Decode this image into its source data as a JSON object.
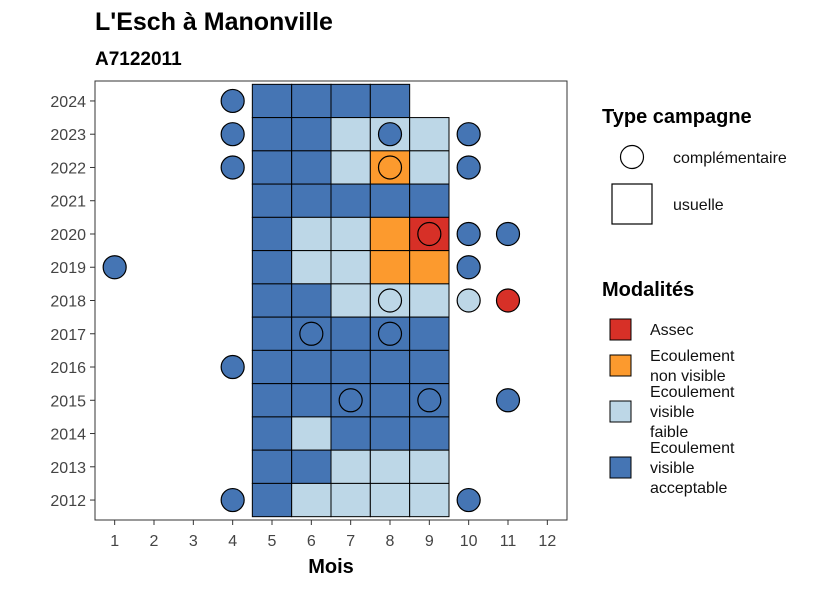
{
  "chart_data": {
    "type": "heatmap",
    "title": "L'Esch à Manonville",
    "subtitle": "A7122011",
    "xlabel": "Mois",
    "ylabel": "",
    "x_ticks": [
      1,
      2,
      3,
      4,
      5,
      6,
      7,
      8,
      9,
      10,
      11,
      12
    ],
    "y_ticks": [
      2012,
      2013,
      2014,
      2015,
      2016,
      2017,
      2018,
      2019,
      2020,
      2021,
      2022,
      2023,
      2024
    ],
    "xlim": [
      0.5,
      12.5
    ],
    "ylim": [
      2011.4,
      2024.6
    ],
    "grid": false,
    "legend_position": "right",
    "modalites": [
      {
        "key": "assec",
        "lines": [
          "Assec"
        ],
        "color": "#D73027"
      },
      {
        "key": "ecoulement_non_visible",
        "lines": [
          "Ecoulement",
          "non visible"
        ],
        "color": "#FC9A2E"
      },
      {
        "key": "ecoulement_visible_faible",
        "lines": [
          "Ecoulement",
          "visible",
          "faible"
        ],
        "color": "#BDD7E7"
      },
      {
        "key": "ecoulement_visible_acceptable",
        "lines": [
          "Ecoulement",
          "visible",
          "acceptable"
        ],
        "color": "#4575B4"
      }
    ],
    "type_campagne_title": "Type campagne",
    "type_campagne": [
      {
        "key": "complementaire",
        "label": "complémentaire",
        "shape": "circle"
      },
      {
        "key": "usuelle",
        "label": "usuelle",
        "shape": "square"
      }
    ],
    "usuelle": [
      {
        "year": 2024,
        "month": 5,
        "modalite": "ecoulement_visible_acceptable"
      },
      {
        "year": 2024,
        "month": 6,
        "modalite": "ecoulement_visible_acceptable"
      },
      {
        "year": 2024,
        "month": 7,
        "modalite": "ecoulement_visible_acceptable"
      },
      {
        "year": 2024,
        "month": 8,
        "modalite": "ecoulement_visible_acceptable"
      },
      {
        "year": 2023,
        "month": 5,
        "modalite": "ecoulement_visible_acceptable"
      },
      {
        "year": 2023,
        "month": 6,
        "modalite": "ecoulement_visible_acceptable"
      },
      {
        "year": 2023,
        "month": 7,
        "modalite": "ecoulement_visible_faible"
      },
      {
        "year": 2023,
        "month": 8,
        "modalite": "ecoulement_visible_faible"
      },
      {
        "year": 2023,
        "month": 9,
        "modalite": "ecoulement_visible_faible"
      },
      {
        "year": 2022,
        "month": 5,
        "modalite": "ecoulement_visible_acceptable"
      },
      {
        "year": 2022,
        "month": 6,
        "modalite": "ecoulement_visible_acceptable"
      },
      {
        "year": 2022,
        "month": 7,
        "modalite": "ecoulement_visible_faible"
      },
      {
        "year": 2022,
        "month": 8,
        "modalite": "ecoulement_non_visible"
      },
      {
        "year": 2022,
        "month": 9,
        "modalite": "ecoulement_visible_faible"
      },
      {
        "year": 2021,
        "month": 5,
        "modalite": "ecoulement_visible_acceptable"
      },
      {
        "year": 2021,
        "month": 6,
        "modalite": "ecoulement_visible_acceptable"
      },
      {
        "year": 2021,
        "month": 7,
        "modalite": "ecoulement_visible_acceptable"
      },
      {
        "year": 2021,
        "month": 8,
        "modalite": "ecoulement_visible_acceptable"
      },
      {
        "year": 2021,
        "month": 9,
        "modalite": "ecoulement_visible_acceptable"
      },
      {
        "year": 2020,
        "month": 5,
        "modalite": "ecoulement_visible_acceptable"
      },
      {
        "year": 2020,
        "month": 6,
        "modalite": "ecoulement_visible_faible"
      },
      {
        "year": 2020,
        "month": 7,
        "modalite": "ecoulement_visible_faible"
      },
      {
        "year": 2020,
        "month": 8,
        "modalite": "ecoulement_non_visible"
      },
      {
        "year": 2020,
        "month": 9,
        "modalite": "assec"
      },
      {
        "year": 2019,
        "month": 5,
        "modalite": "ecoulement_visible_acceptable"
      },
      {
        "year": 2019,
        "month": 6,
        "modalite": "ecoulement_visible_faible"
      },
      {
        "year": 2019,
        "month": 7,
        "modalite": "ecoulement_visible_faible"
      },
      {
        "year": 2019,
        "month": 8,
        "modalite": "ecoulement_non_visible"
      },
      {
        "year": 2019,
        "month": 9,
        "modalite": "ecoulement_non_visible"
      },
      {
        "year": 2018,
        "month": 5,
        "modalite": "ecoulement_visible_acceptable"
      },
      {
        "year": 2018,
        "month": 6,
        "modalite": "ecoulement_visible_acceptable"
      },
      {
        "year": 2018,
        "month": 7,
        "modalite": "ecoulement_visible_faible"
      },
      {
        "year": 2018,
        "month": 8,
        "modalite": "ecoulement_visible_faible"
      },
      {
        "year": 2018,
        "month": 9,
        "modalite": "ecoulement_visible_faible"
      },
      {
        "year": 2017,
        "month": 5,
        "modalite": "ecoulement_visible_acceptable"
      },
      {
        "year": 2017,
        "month": 6,
        "modalite": "ecoulement_visible_acceptable"
      },
      {
        "year": 2017,
        "month": 7,
        "modalite": "ecoulement_visible_acceptable"
      },
      {
        "year": 2017,
        "month": 8,
        "modalite": "ecoulement_visible_acceptable"
      },
      {
        "year": 2017,
        "month": 9,
        "modalite": "ecoulement_visible_acceptable"
      },
      {
        "year": 2016,
        "month": 5,
        "modalite": "ecoulement_visible_acceptable"
      },
      {
        "year": 2016,
        "month": 6,
        "modalite": "ecoulement_visible_acceptable"
      },
      {
        "year": 2016,
        "month": 7,
        "modalite": "ecoulement_visible_acceptable"
      },
      {
        "year": 2016,
        "month": 8,
        "modalite": "ecoulement_visible_acceptable"
      },
      {
        "year": 2016,
        "month": 9,
        "modalite": "ecoulement_visible_acceptable"
      },
      {
        "year": 2015,
        "month": 5,
        "modalite": "ecoulement_visible_acceptable"
      },
      {
        "year": 2015,
        "month": 6,
        "modalite": "ecoulement_visible_acceptable"
      },
      {
        "year": 2015,
        "month": 7,
        "modalite": "ecoulement_visible_acceptable"
      },
      {
        "year": 2015,
        "month": 8,
        "modalite": "ecoulement_visible_acceptable"
      },
      {
        "year": 2015,
        "month": 9,
        "modalite": "ecoulement_visible_acceptable"
      },
      {
        "year": 2014,
        "month": 5,
        "modalite": "ecoulement_visible_acceptable"
      },
      {
        "year": 2014,
        "month": 6,
        "modalite": "ecoulement_visible_faible"
      },
      {
        "year": 2014,
        "month": 7,
        "modalite": "ecoulement_visible_acceptable"
      },
      {
        "year": 2014,
        "month": 8,
        "modalite": "ecoulement_visible_acceptable"
      },
      {
        "year": 2014,
        "month": 9,
        "modalite": "ecoulement_visible_acceptable"
      },
      {
        "year": 2013,
        "month": 5,
        "modalite": "ecoulement_visible_acceptable"
      },
      {
        "year": 2013,
        "month": 6,
        "modalite": "ecoulement_visible_acceptable"
      },
      {
        "year": 2013,
        "month": 7,
        "modalite": "ecoulement_visible_faible"
      },
      {
        "year": 2013,
        "month": 8,
        "modalite": "ecoulement_visible_faible"
      },
      {
        "year": 2013,
        "month": 9,
        "modalite": "ecoulement_visible_faible"
      },
      {
        "year": 2012,
        "month": 5,
        "modalite": "ecoulement_visible_acceptable"
      },
      {
        "year": 2012,
        "month": 6,
        "modalite": "ecoulement_visible_faible"
      },
      {
        "year": 2012,
        "month": 7,
        "modalite": "ecoulement_visible_faible"
      },
      {
        "year": 2012,
        "month": 8,
        "modalite": "ecoulement_visible_faible"
      },
      {
        "year": 2012,
        "month": 9,
        "modalite": "ecoulement_visible_faible"
      }
    ],
    "complementaire": [
      {
        "year": 2024,
        "month": 4,
        "modalite": "ecoulement_visible_acceptable"
      },
      {
        "year": 2023,
        "month": 4,
        "modalite": "ecoulement_visible_acceptable"
      },
      {
        "year": 2023,
        "month": 8,
        "modalite": "ecoulement_visible_acceptable"
      },
      {
        "year": 2023,
        "month": 10,
        "modalite": "ecoulement_visible_acceptable"
      },
      {
        "year": 2022,
        "month": 4,
        "modalite": "ecoulement_visible_acceptable"
      },
      {
        "year": 2022,
        "month": 8,
        "modalite": "ecoulement_non_visible"
      },
      {
        "year": 2022,
        "month": 10,
        "modalite": "ecoulement_visible_acceptable"
      },
      {
        "year": 2020,
        "month": 9,
        "modalite": "assec"
      },
      {
        "year": 2020,
        "month": 10,
        "modalite": "ecoulement_visible_acceptable"
      },
      {
        "year": 2020,
        "month": 11,
        "modalite": "ecoulement_visible_acceptable"
      },
      {
        "year": 2019,
        "month": 1,
        "modalite": "ecoulement_visible_acceptable"
      },
      {
        "year": 2019,
        "month": 10,
        "modalite": "ecoulement_visible_acceptable"
      },
      {
        "year": 2018,
        "month": 8,
        "modalite": "ecoulement_visible_faible"
      },
      {
        "year": 2018,
        "month": 10,
        "modalite": "ecoulement_visible_faible"
      },
      {
        "year": 2018,
        "month": 11,
        "modalite": "assec"
      },
      {
        "year": 2017,
        "month": 6,
        "modalite": "ecoulement_visible_acceptable"
      },
      {
        "year": 2017,
        "month": 8,
        "modalite": "ecoulement_visible_acceptable"
      },
      {
        "year": 2016,
        "month": 4,
        "modalite": "ecoulement_visible_acceptable"
      },
      {
        "year": 2015,
        "month": 7,
        "modalite": "ecoulement_visible_acceptable"
      },
      {
        "year": 2015,
        "month": 9,
        "modalite": "ecoulement_visible_acceptable"
      },
      {
        "year": 2015,
        "month": 11,
        "modalite": "ecoulement_visible_acceptable"
      },
      {
        "year": 2012,
        "month": 4,
        "modalite": "ecoulement_visible_acceptable"
      },
      {
        "year": 2012,
        "month": 10,
        "modalite": "ecoulement_visible_acceptable"
      }
    ]
  }
}
